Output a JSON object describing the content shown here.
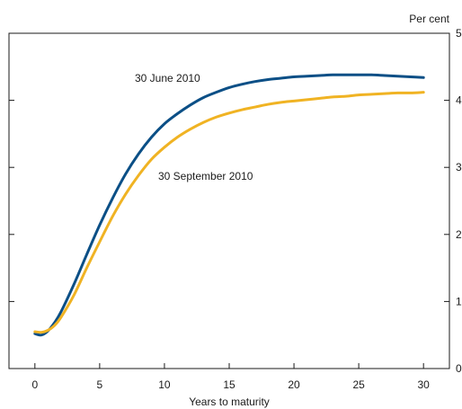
{
  "chart_data": {
    "type": "line",
    "xlabel": "Years to maturity",
    "ylabel": "Per cent",
    "xlim": [
      -2,
      32
    ],
    "ylim": [
      0,
      5
    ],
    "x_ticks": [
      0,
      5,
      10,
      15,
      20,
      25,
      30
    ],
    "y_ticks": [
      0,
      1,
      2,
      3,
      4,
      5
    ],
    "grid": false,
    "y_axis_side": "right",
    "series": [
      {
        "name": "30 June 2010",
        "color": "#0b4f86",
        "x": [
          0,
          0.5,
          1,
          1.5,
          2,
          3,
          4,
          5,
          6,
          7,
          8,
          9,
          10,
          11,
          12,
          13,
          14,
          15,
          16,
          17,
          18,
          19,
          20,
          21,
          22,
          23,
          24,
          25,
          26,
          27,
          28,
          29,
          30
        ],
        "y": [
          0.52,
          0.5,
          0.56,
          0.68,
          0.84,
          1.25,
          1.7,
          2.14,
          2.54,
          2.9,
          3.2,
          3.45,
          3.65,
          3.8,
          3.93,
          4.04,
          4.12,
          4.19,
          4.24,
          4.28,
          4.31,
          4.33,
          4.35,
          4.36,
          4.37,
          4.38,
          4.38,
          4.38,
          4.38,
          4.37,
          4.36,
          4.35,
          4.34
        ]
      },
      {
        "name": "30 September 2010",
        "color": "#f0b323",
        "x": [
          0,
          0.5,
          1,
          1.5,
          2,
          3,
          4,
          5,
          6,
          7,
          8,
          9,
          10,
          11,
          12,
          13,
          14,
          15,
          16,
          17,
          18,
          19,
          20,
          21,
          22,
          23,
          24,
          25,
          26,
          27,
          28,
          29,
          30
        ],
        "y": [
          0.55,
          0.54,
          0.57,
          0.64,
          0.76,
          1.09,
          1.5,
          1.89,
          2.27,
          2.6,
          2.88,
          3.12,
          3.3,
          3.45,
          3.57,
          3.67,
          3.75,
          3.81,
          3.86,
          3.9,
          3.94,
          3.97,
          3.99,
          4.01,
          4.03,
          4.05,
          4.06,
          4.08,
          4.09,
          4.1,
          4.11,
          4.11,
          4.12
        ]
      }
    ]
  }
}
